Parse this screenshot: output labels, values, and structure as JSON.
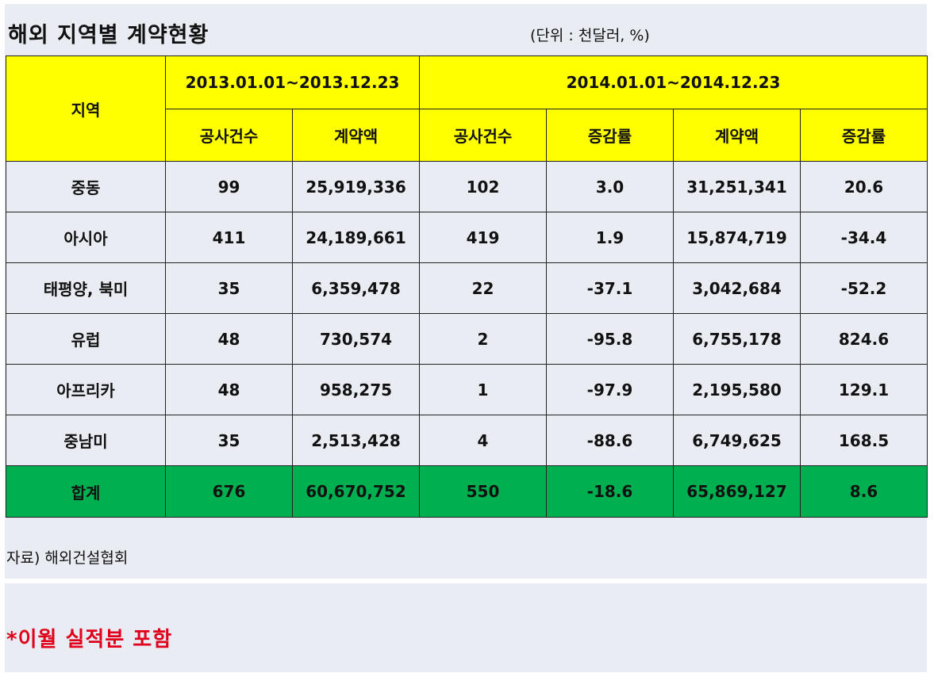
{
  "title": "해외 지역별 계약현황",
  "unit": "(단위 : 천달러, %)",
  "table": {
    "region_header": "지역",
    "period_2013": "2013.01.01~2013.12.23",
    "period_2014": "2014.01.01~2014.12.23",
    "sub_headers": [
      "공사건수",
      "계약액",
      "공사건수",
      "증감률",
      "계약액",
      "증감률"
    ],
    "rows": [
      {
        "region": "중동",
        "c2013": "99",
        "a2013": "25,919,336",
        "c2014": "102",
        "cchg": "3.0",
        "a2014": "31,251,341",
        "achg": "20.6"
      },
      {
        "region": "아시아",
        "c2013": "411",
        "a2013": "24,189,661",
        "c2014": "419",
        "cchg": "1.9",
        "a2014": "15,874,719",
        "achg": "-34.4"
      },
      {
        "region": "태평양, 북미",
        "c2013": "35",
        "a2013": "6,359,478",
        "c2014": "22",
        "cchg": "-37.1",
        "a2014": "3,042,684",
        "achg": "-52.2"
      },
      {
        "region": "유럽",
        "c2013": "48",
        "a2013": "730,574",
        "c2014": "2",
        "cchg": "-95.8",
        "a2014": "6,755,178",
        "achg": "824.6"
      },
      {
        "region": "아프리카",
        "c2013": "48",
        "a2013": "958,275",
        "c2014": "1",
        "cchg": "-97.9",
        "a2014": "2,195,580",
        "achg": "129.1"
      },
      {
        "region": "중남미",
        "c2013": "35",
        "a2013": "2,513,428",
        "c2014": "4",
        "cchg": "-88.6",
        "a2014": "6,749,625",
        "achg": "168.5"
      }
    ],
    "total": {
      "region": "합계",
      "c2013": "676",
      "a2013": "60,670,752",
      "c2014": "550",
      "cchg": "-18.6",
      "a2014": "65,869,127",
      "achg": "8.6"
    }
  },
  "source": "자료) 해외건설협회",
  "note": "*이월 실적분 포함",
  "colors": {
    "header": "#ffff00",
    "total": "#00b050",
    "note": "#e0001b",
    "panel": "#e9edf3"
  }
}
